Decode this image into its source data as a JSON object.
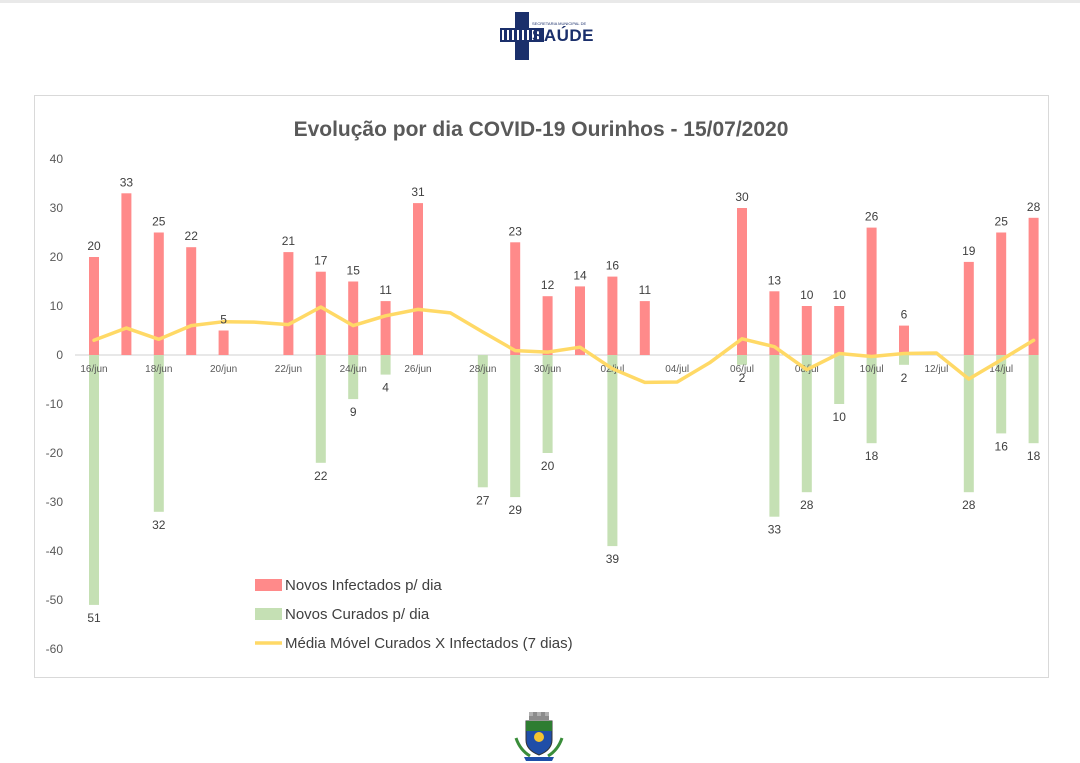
{
  "header": {
    "logo_small_text": "SECRETARIA MUNICIPAL DE",
    "logo_text": "SAÚDE"
  },
  "chart_data": {
    "type": "bar",
    "title": "Evolução por dia COVID-19 Ourinhos - 15/07/2020",
    "xlabel": "",
    "ylabel": "",
    "ylim": [
      -60,
      40
    ],
    "yticks": [
      40,
      30,
      20,
      10,
      0,
      -10,
      -20,
      -30,
      -40,
      -50,
      -60
    ],
    "grid": false,
    "categories": [
      "16/jun",
      "17/jun",
      "18/jun",
      "19/jun",
      "20/jun",
      "21/jun",
      "22/jun",
      "23/jun",
      "24/jun",
      "25/jun",
      "26/jun",
      "27/jun",
      "28/jun",
      "29/jun",
      "30/jun",
      "01/jul",
      "02/jul",
      "03/jul",
      "04/jul",
      "05/jul",
      "06/jul",
      "07/jul",
      "08/jul",
      "09/jul",
      "10/jul",
      "11/jul",
      "12/jul",
      "13/jul",
      "14/jul",
      "15/jul"
    ],
    "tick_labels": [
      "16/jun",
      "",
      "18/jun",
      "",
      "20/jun",
      "",
      "22/jun",
      "",
      "24/jun",
      "",
      "26/jun",
      "",
      "28/jun",
      "",
      "30/jun",
      "",
      "02/jul",
      "",
      "04/jul",
      "",
      "06/jul",
      "",
      "08/jul",
      "",
      "10/jul",
      "",
      "12/jul",
      "",
      "14/jul",
      ""
    ],
    "series": [
      {
        "name": "Novos Infectados p/ dia",
        "color": "#ff8a8a",
        "kind": "bar",
        "values": [
          20,
          33,
          25,
          22,
          5,
          null,
          21,
          17,
          15,
          11,
          31,
          null,
          null,
          23,
          12,
          14,
          16,
          11,
          null,
          null,
          30,
          13,
          10,
          10,
          26,
          6,
          null,
          19,
          25,
          28
        ],
        "labels": [
          "20",
          "33",
          "25",
          "22",
          "5",
          "",
          "21",
          "17",
          "15",
          "11",
          "31",
          "",
          "",
          "23",
          "12",
          "14",
          "16",
          "11",
          "",
          "",
          "30",
          "13",
          "10",
          "10",
          "26",
          "6",
          "",
          "19",
          "25",
          "28"
        ]
      },
      {
        "name": "Novos Curados p/ dia",
        "color": "#c5e0b4",
        "kind": "bar",
        "values": [
          -51,
          null,
          -32,
          null,
          null,
          null,
          null,
          -22,
          -9,
          -4,
          null,
          null,
          -27,
          -29,
          -20,
          null,
          -39,
          null,
          null,
          null,
          -2,
          -33,
          -28,
          -10,
          -18,
          -2,
          null,
          -28,
          -16,
          -18
        ],
        "labels": [
          "51",
          "",
          "32",
          "",
          "",
          "",
          "",
          "22",
          "9",
          "4",
          "",
          "",
          "27",
          "29",
          "20",
          "",
          "39",
          "",
          "",
          "",
          "2",
          "33",
          "28",
          "10",
          "18",
          "2",
          "",
          "28",
          "16",
          "18"
        ]
      },
      {
        "name": "Média Móvel Curados X Infectados (7 dias)",
        "color": "#ffd966",
        "kind": "line",
        "values": [
          3,
          5.5,
          3.2,
          6,
          6.8,
          6.7,
          6.2,
          9.8,
          6,
          8,
          9.3,
          8.6,
          4.7,
          0.9,
          0.6,
          1.6,
          -2.8,
          -5.6,
          -5.5,
          -1.6,
          3.3,
          1.7,
          -3,
          0.3,
          -0.3,
          0.3,
          0.4,
          -4.9,
          -1,
          3
        ]
      }
    ],
    "legend": [
      "Novos Infectados p/ dia",
      "Novos Curados p/ dia",
      "Média Móvel Curados X Infectados (7 dias)"
    ],
    "legend_position": "bottom-left"
  }
}
